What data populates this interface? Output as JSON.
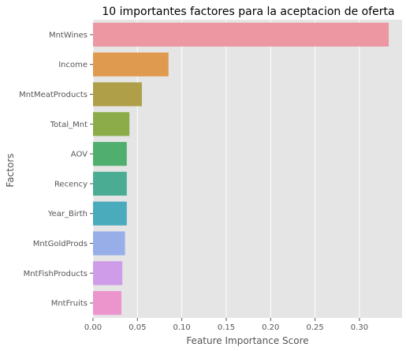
{
  "chart_data": {
    "type": "bar",
    "orientation": "horizontal",
    "title": "10 importantes factores para la aceptacion de oferta",
    "xlabel": "Feature Importance Score",
    "ylabel": "Factors",
    "xlim": [
      0,
      0.348
    ],
    "xticks": [
      "0.00",
      "0.05",
      "0.10",
      "0.15",
      "0.20",
      "0.25",
      "0.30"
    ],
    "grid": true,
    "categories": [
      "MntWines",
      "Income",
      "MntMeatProducts",
      "Total_Mnt",
      "AOV",
      "Recency",
      "Year_Birth",
      "MntGoldProds",
      "MntFishProducts",
      "MntFruits"
    ],
    "values": [
      0.333,
      0.085,
      0.055,
      0.041,
      0.038,
      0.038,
      0.038,
      0.036,
      0.033,
      0.032
    ],
    "colors": [
      "#ec97a1",
      "#e09a50",
      "#ae9f48",
      "#8cac4a",
      "#50af6f",
      "#4aad93",
      "#4aabbd",
      "#97aee9",
      "#ce9ce8",
      "#ec95cd"
    ]
  }
}
